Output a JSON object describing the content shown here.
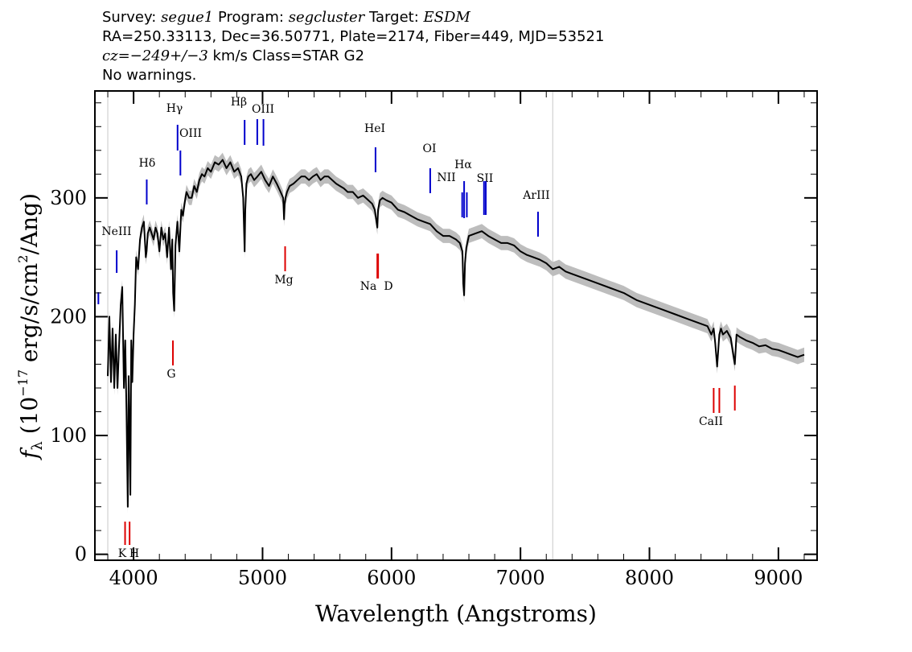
{
  "header": {
    "line1": {
      "survey_label": "Survey:",
      "survey": "segue1",
      "program_label": "Program:",
      "program": "segcluster",
      "target_label": "Target:",
      "target": "ESDM"
    },
    "line2": "RA=250.33113, Dec=36.50771, Plate=2174, Fiber=449, MJD=53521",
    "line3": {
      "cz_label": "cz=",
      "cz_value": "−249+/−3",
      "cz_unit": " km/s Class=STAR G2"
    },
    "line4": "No warnings."
  },
  "chart_data": {
    "type": "line",
    "xlabel": "Wavelength (Angstroms)",
    "ylabel_parts": {
      "f": "f",
      "sub": "λ",
      "open": " (10",
      "exp": "−17",
      "mid": " erg/s/cm",
      "exp2": "2",
      "close": "/Ang)"
    },
    "xlim": [
      3700,
      9300
    ],
    "ylim": [
      -5,
      390
    ],
    "xticks": [
      4000,
      5000,
      6000,
      7000,
      8000,
      9000
    ],
    "xtick_labels": [
      "4000",
      "5000",
      "6000",
      "7000",
      "8000",
      "9000"
    ],
    "yticks": [
      0,
      100,
      200,
      300
    ],
    "ytick_labels": [
      "0",
      "100",
      "200",
      "300"
    ],
    "vertical_reference_lines": [
      3800,
      7250
    ],
    "colors": {
      "spectrum": "#000000",
      "error_band": "#bdbdbd",
      "emission": "#0000cc",
      "absorption": "#dd0000",
      "reference": "#c8c8c8"
    },
    "spectrum": {
      "x": [
        3800,
        3812,
        3825,
        3837,
        3850,
        3862,
        3875,
        3887,
        3900,
        3912,
        3925,
        3935,
        3945,
        3955,
        3962,
        3968,
        3975,
        3982,
        3990,
        4000,
        4010,
        4020,
        4035,
        4050,
        4065,
        4080,
        4095,
        4101,
        4110,
        4125,
        4140,
        4155,
        4170,
        4185,
        4200,
        4215,
        4230,
        4245,
        4260,
        4275,
        4290,
        4300,
        4307,
        4315,
        4325,
        4340,
        4355,
        4370,
        4383,
        4395,
        4410,
        4430,
        4450,
        4470,
        4490,
        4510,
        4530,
        4550,
        4575,
        4600,
        4630,
        4660,
        4690,
        4720,
        4750,
        4780,
        4810,
        4835,
        4850,
        4855,
        4861,
        4866,
        4875,
        4890,
        4910,
        4935,
        4960,
        4990,
        5020,
        5050,
        5080,
        5110,
        5140,
        5160,
        5167,
        5172,
        5178,
        5190,
        5210,
        5240,
        5270,
        5300,
        5330,
        5360,
        5390,
        5420,
        5450,
        5480,
        5510,
        5540,
        5570,
        5600,
        5630,
        5660,
        5700,
        5740,
        5780,
        5820,
        5850,
        5870,
        5890,
        5896,
        5910,
        5930,
        5960,
        6000,
        6050,
        6100,
        6150,
        6200,
        6250,
        6300,
        6350,
        6400,
        6450,
        6500,
        6530,
        6550,
        6556,
        6563,
        6570,
        6580,
        6600,
        6650,
        6700,
        6750,
        6800,
        6850,
        6900,
        6950,
        7000,
        7050,
        7100,
        7150,
        7200,
        7250,
        7300,
        7350,
        7400,
        7500,
        7600,
        7700,
        7800,
        7900,
        8000,
        8100,
        8200,
        8300,
        8400,
        8450,
        8480,
        8498,
        8510,
        8525,
        8542,
        8555,
        8570,
        8600,
        8630,
        8650,
        8662,
        8675,
        8700,
        8750,
        8800,
        8850,
        8900,
        8950,
        9000,
        9050,
        9100,
        9150,
        9200
      ],
      "y": [
        150,
        200,
        145,
        190,
        140,
        185,
        140,
        175,
        210,
        225,
        140,
        180,
        120,
        40,
        150,
        110,
        50,
        180,
        145,
        185,
        210,
        250,
        240,
        265,
        275,
        280,
        250,
        255,
        270,
        275,
        270,
        265,
        275,
        270,
        255,
        275,
        265,
        270,
        250,
        275,
        240,
        265,
        220,
        205,
        260,
        280,
        255,
        290,
        285,
        295,
        305,
        300,
        300,
        310,
        305,
        315,
        320,
        318,
        325,
        322,
        330,
        328,
        332,
        325,
        330,
        322,
        325,
        318,
        300,
        280,
        255,
        290,
        312,
        318,
        320,
        315,
        318,
        322,
        315,
        310,
        318,
        312,
        305,
        300,
        282,
        295,
        300,
        305,
        310,
        312,
        315,
        318,
        318,
        315,
        318,
        320,
        315,
        318,
        318,
        315,
        312,
        310,
        308,
        305,
        305,
        300,
        302,
        298,
        295,
        290,
        275,
        290,
        298,
        300,
        298,
        296,
        290,
        288,
        285,
        282,
        280,
        278,
        272,
        268,
        268,
        265,
        262,
        255,
        228,
        218,
        245,
        258,
        268,
        270,
        272,
        268,
        265,
        262,
        262,
        260,
        255,
        252,
        250,
        248,
        245,
        240,
        242,
        238,
        236,
        232,
        228,
        224,
        220,
        214,
        210,
        206,
        202,
        198,
        194,
        192,
        185,
        190,
        178,
        158,
        185,
        190,
        185,
        188,
        182,
        168,
        160,
        185,
        183,
        180,
        178,
        175,
        176,
        173,
        172,
        170,
        168,
        166,
        168
      ]
    },
    "emission_lines": [
      {
        "label": "II",
        "x": 3727
      },
      {
        "label": "NeIII",
        "x": 3869
      },
      {
        "label": "Hδ",
        "x": 4102
      },
      {
        "label": "Hγ",
        "x": 4341
      },
      {
        "label": "OIII",
        "x": 4363
      },
      {
        "label": "Hβ",
        "x": 4861
      },
      {
        "label": "OIII",
        "x": 4959
      },
      {
        "label": "OIII",
        "x": 5007
      },
      {
        "label": "HeI",
        "x": 5876
      },
      {
        "label": "OI",
        "x": 6300
      },
      {
        "label": "NII",
        "x": 6548
      },
      {
        "label": "Hα",
        "x": 6563
      },
      {
        "label": "NII",
        "x": 6584
      },
      {
        "label": "SII",
        "x": 6717
      },
      {
        "label": "SII",
        "x": 6731
      },
      {
        "label": "ArIII",
        "x": 7136
      }
    ],
    "absorption_lines": [
      {
        "label": "K",
        "x": 3934
      },
      {
        "label": "H",
        "x": 3969
      },
      {
        "label": "G",
        "x": 4305
      },
      {
        "label": "Mg",
        "x": 5175
      },
      {
        "label": "Na",
        "x": 5890
      },
      {
        "label": "D",
        "x": 5896
      },
      {
        "label": "CaII",
        "x": 8498
      },
      {
        "label": "CaII",
        "x": 8542
      },
      {
        "label": "CaII",
        "x": 8662
      }
    ],
    "annotation_texts": [
      "NeIII",
      "Hδ",
      "Hγ",
      "OIII",
      "Hβ",
      "OIII",
      "HeI",
      "OI",
      "NII",
      "Hα",
      "NII",
      "SII",
      "ArIII",
      "II",
      "K",
      "H",
      "G",
      "Mg",
      "Na",
      "D",
      "CaII"
    ]
  }
}
